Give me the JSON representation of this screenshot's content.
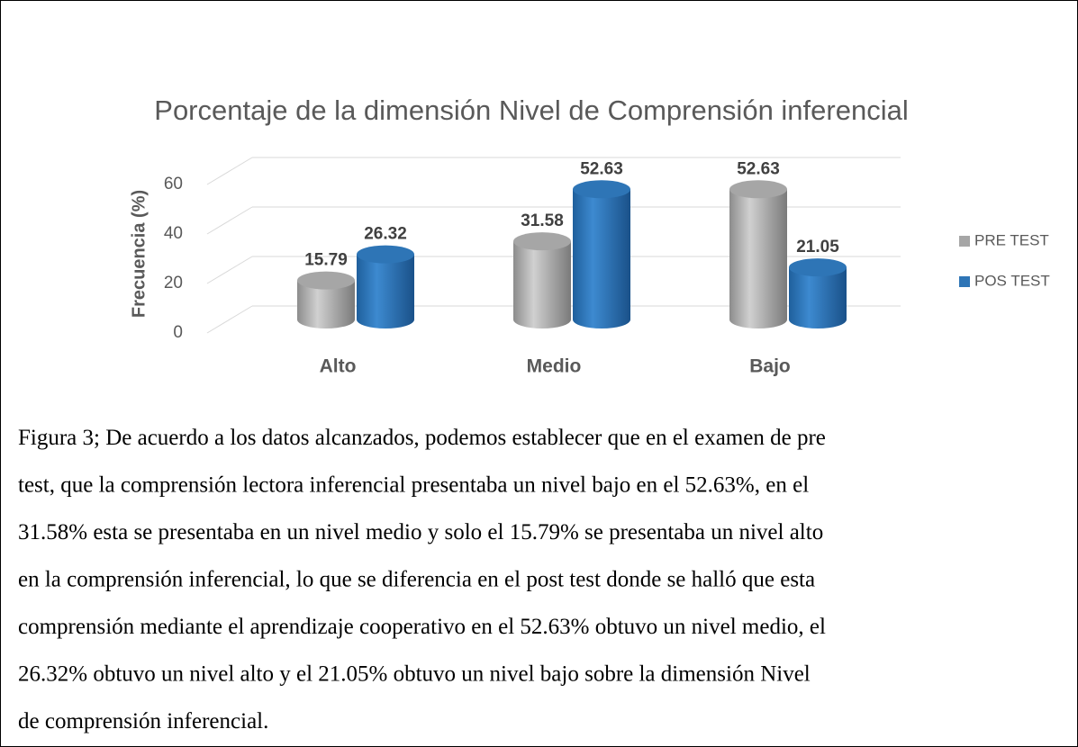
{
  "chart_data": {
    "type": "bar3d",
    "title": "Porcentaje de la dimensión Nivel de Comprensión inferencial",
    "ylabel": "Frecuencia (%)",
    "categories": [
      "Alto",
      "Medio",
      "Bajo"
    ],
    "series": [
      {
        "name": "PRE TEST",
        "color": "#a6a6a6",
        "values": [
          15.79,
          31.58,
          52.63
        ]
      },
      {
        "name": "POS TEST",
        "color": "#2e75b6",
        "values": [
          26.32,
          52.63,
          21.05
        ]
      }
    ],
    "ylim": [
      0,
      60
    ],
    "yticks": [
      0,
      20,
      40,
      60
    ],
    "grid": true,
    "legend": "right"
  },
  "caption": [
    "Figura 3; De acuerdo a los datos alcanzados, podemos establecer que en el examen de pre",
    "test, que la comprensión lectora inferencial presentaba un nivel bajo en el 52.63%, en el",
    "31.58% esta se presentaba en un nivel medio y solo el 15.79% se presentaba un nivel alto",
    "en la comprensión inferencial, lo que se diferencia en el post test donde se halló que esta",
    "comprensión mediante el aprendizaje cooperativo en el 52.63% obtuvo un nivel medio, el",
    "26.32% obtuvo un nivel alto y el 21.05%  obtuvo un nivel bajo sobre la dimensión Nivel",
    "de comprensión inferencial."
  ]
}
